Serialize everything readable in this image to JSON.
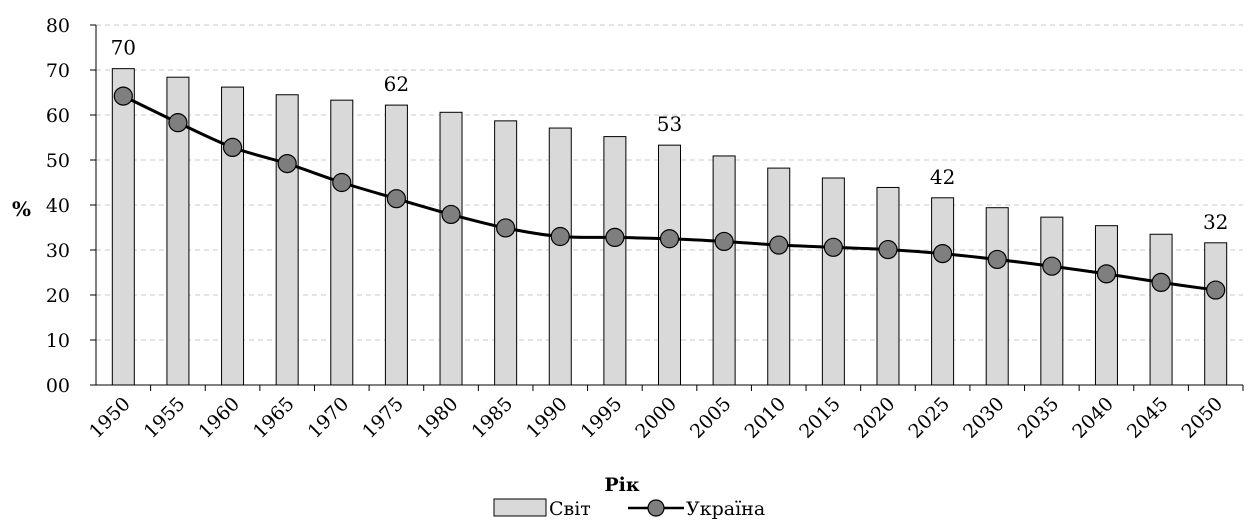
{
  "chart_data": {
    "type": "bar",
    "categories": [
      "1950",
      "1955",
      "1960",
      "1965",
      "1970",
      "1975",
      "1980",
      "1985",
      "1990",
      "1995",
      "2000",
      "2005",
      "2010",
      "2015",
      "2020",
      "2025",
      "2030",
      "2035",
      "2040",
      "2045",
      "2050"
    ],
    "series": [
      {
        "name": "Світ",
        "type": "bar",
        "values": [
          70.3,
          68.4,
          66.2,
          64.5,
          63.3,
          62.2,
          60.6,
          58.7,
          57.1,
          55.2,
          53.3,
          50.9,
          48.2,
          46.0,
          43.9,
          41.6,
          39.4,
          37.3,
          35.4,
          33.5,
          31.6
        ]
      },
      {
        "name": "Україна",
        "type": "line",
        "values": [
          64.2,
          58.3,
          52.8,
          49.2,
          45.0,
          41.4,
          37.9,
          34.9,
          33.0,
          32.8,
          32.5,
          31.9,
          31.1,
          30.6,
          30.1,
          29.2,
          27.9,
          26.4,
          24.7,
          22.8,
          21.1
        ]
      }
    ],
    "annotations": [
      {
        "category": "1950",
        "text": "70"
      },
      {
        "category": "1975",
        "text": "62"
      },
      {
        "category": "2000",
        "text": "53"
      },
      {
        "category": "2025",
        "text": "42"
      },
      {
        "category": "2050",
        "text": "32"
      }
    ],
    "y_ticks": [
      "00",
      "10",
      "20",
      "30",
      "40",
      "50",
      "60",
      "70",
      "80"
    ],
    "ylim": [
      0,
      80
    ],
    "ylabel": "%",
    "xlabel": "Рік",
    "grid": "horizontal dashed",
    "legend_position": "bottom",
    "colors": {
      "bar_fill": "#d9d9d9",
      "bar_stroke": "#000000",
      "line": "#000000",
      "marker_fill": "#7f7f7f",
      "grid": "#c8c8c8"
    }
  }
}
